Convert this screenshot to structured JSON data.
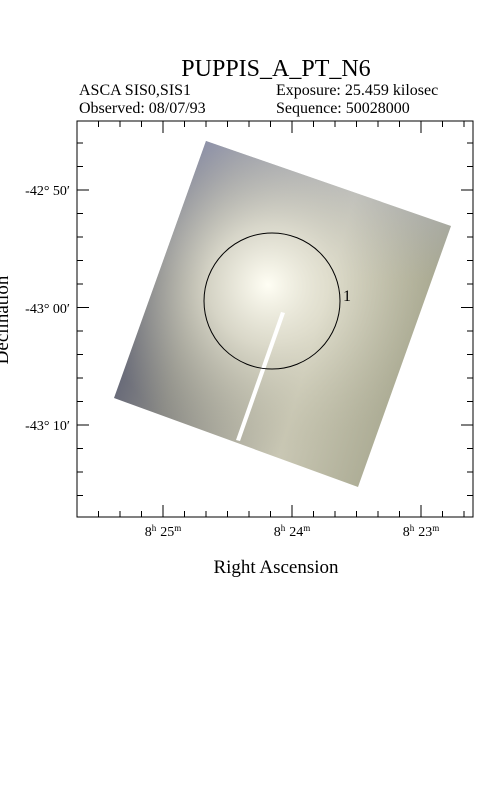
{
  "header": {
    "title": "PUPPIS_A_PT_N6",
    "instrument": "ASCA SIS0,SIS1",
    "exposure": "Exposure: 25.459 kilosec",
    "observed": "Observed: 08/07/93",
    "sequence": "Sequence: 50028000"
  },
  "axes": {
    "x_label": "Right Ascension",
    "y_label": "Declination",
    "ra_units": [
      "h",
      "m"
    ],
    "x_ticks": [
      {
        "h": "8",
        "m": "25"
      },
      {
        "h": "8",
        "m": "24"
      },
      {
        "h": "8",
        "m": "23"
      }
    ],
    "y_ticks": [
      "-42° 50′",
      "-43° 00′",
      "-43° 10′"
    ]
  },
  "regions": [
    {
      "label": "1"
    }
  ]
}
